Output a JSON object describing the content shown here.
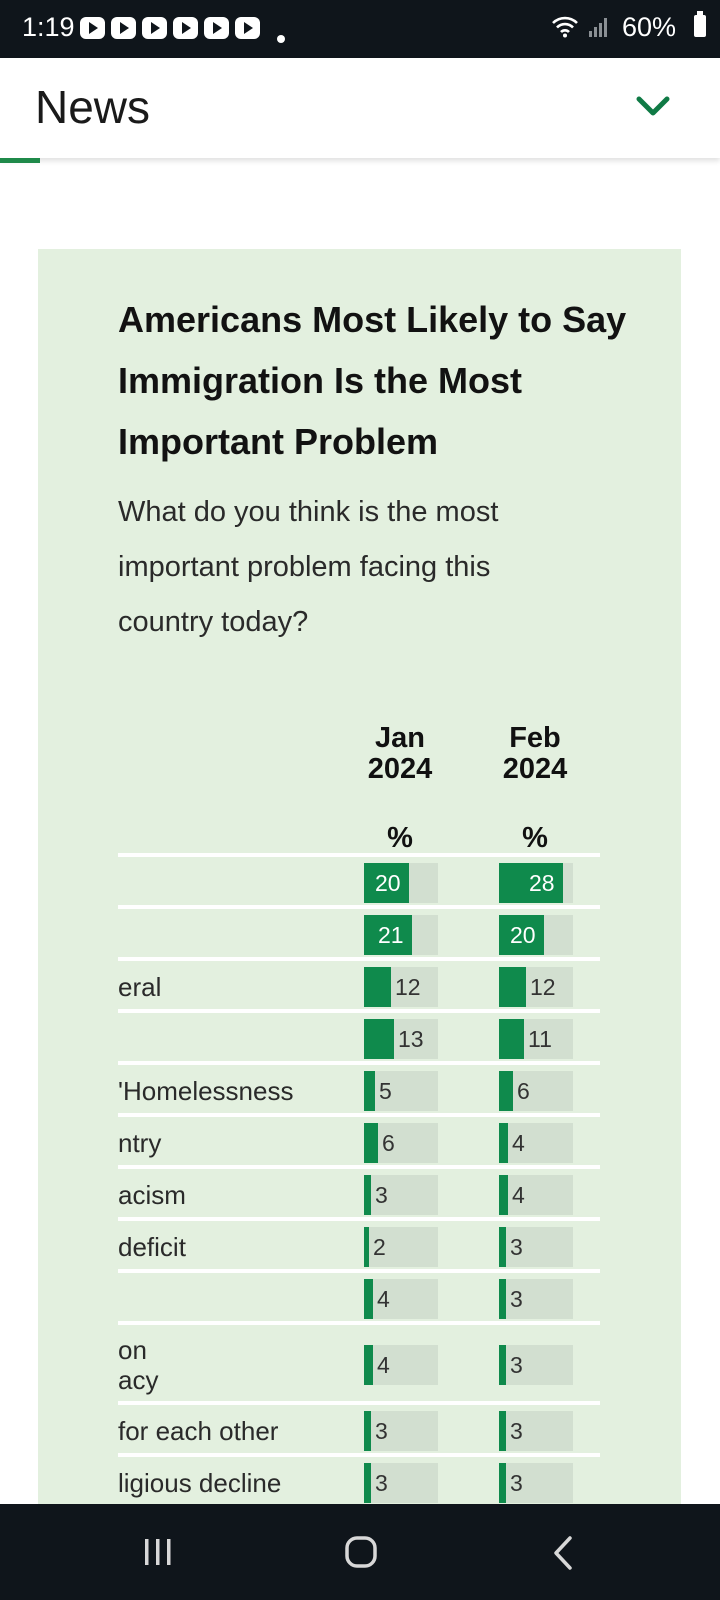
{
  "status_bar": {
    "time": "1:19",
    "battery": "60%",
    "app_icons": [
      "youtube-icon",
      "youtube-icon",
      "youtube-icon",
      "youtube-icon",
      "youtube-icon",
      "youtube-icon"
    ]
  },
  "header": {
    "title": "News",
    "accent": "#1f8a4a"
  },
  "card": {
    "title": "Americans Most Likely to Say Immigration Is the Most Important Problem",
    "subtitle": "What do you think is the most important problem facing this country today?",
    "columns": [
      {
        "label": "Jan 2024",
        "unit": "%"
      },
      {
        "label": "Feb 2024",
        "unit": "%"
      }
    ],
    "rows": [
      {
        "label": "",
        "jan": 20,
        "feb": 28
      },
      {
        "label": "",
        "jan": 21,
        "feb": 20
      },
      {
        "label": "eral",
        "jan": 12,
        "feb": 12
      },
      {
        "label": "",
        "jan": 13,
        "feb": 11
      },
      {
        "label": "'Homelessness",
        "jan": 5,
        "feb": 6
      },
      {
        "label": "ntry",
        "jan": 6,
        "feb": 4
      },
      {
        "label": "acism",
        "jan": 3,
        "feb": 4
      },
      {
        "label": "deficit",
        "jan": 2,
        "feb": 3
      },
      {
        "label": "",
        "jan": 4,
        "feb": 3
      },
      {
        "label": "on\nacy",
        "jan": 4,
        "feb": 3
      },
      {
        "label": "for each other",
        "jan": 3,
        "feb": 3
      },
      {
        "label": "ligious decline",
        "jan": 3,
        "feb": 3
      }
    ],
    "bar_color": "#0f8a4c",
    "track_color": "#d2dfd0"
  },
  "nav": {
    "recent": "recent-apps-icon",
    "home": "home-icon",
    "back": "back-icon"
  }
}
